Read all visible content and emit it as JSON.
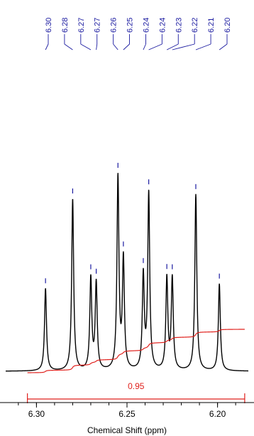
{
  "chart_data": {
    "type": "line",
    "title": "",
    "xlabel": "Chemical Shift (ppm)",
    "ylabel": "",
    "x_axis_reversed": true,
    "xlim": [
      6.317,
      6.183
    ],
    "ylim": [
      0,
      1
    ],
    "x_ticks": [
      {
        "value": 6.3,
        "label": "6.30"
      },
      {
        "value": 6.25,
        "label": "6.25"
      },
      {
        "value": 6.2,
        "label": "6.20"
      }
    ],
    "peaks": [
      {
        "shift": 6.295,
        "height": 0.36
      },
      {
        "shift": 6.28,
        "height": 0.75
      },
      {
        "shift": 6.27,
        "height": 0.4
      },
      {
        "shift": 6.267,
        "height": 0.38
      },
      {
        "shift": 6.255,
        "height": 0.84
      },
      {
        "shift": 6.252,
        "height": 0.48
      },
      {
        "shift": 6.241,
        "height": 0.41
      },
      {
        "shift": 6.238,
        "height": 0.77
      },
      {
        "shift": 6.228,
        "height": 0.4
      },
      {
        "shift": 6.225,
        "height": 0.4
      },
      {
        "shift": 6.212,
        "height": 0.77
      },
      {
        "shift": 6.199,
        "height": 0.38
      }
    ],
    "peak_labels": [
      {
        "label": "6.30",
        "shift": 6.295
      },
      {
        "label": "6.28",
        "shift": 6.28
      },
      {
        "label": "6.27",
        "shift": 6.27
      },
      {
        "label": "6.27",
        "shift": 6.267
      },
      {
        "label": "6.26",
        "shift": 6.255
      },
      {
        "label": "6.25",
        "shift": 6.252
      },
      {
        "label": "6.24",
        "shift": 6.241
      },
      {
        "label": "6.24",
        "shift": 6.238
      },
      {
        "label": "6.23",
        "shift": 6.228
      },
      {
        "label": "6.22",
        "shift": 6.225
      },
      {
        "label": "6.21",
        "shift": 6.212
      },
      {
        "label": "6.20",
        "shift": 6.199
      }
    ],
    "integrals": [
      {
        "from": 6.305,
        "to": 6.185,
        "value": "0.95"
      }
    ],
    "grid": false,
    "legend": "none",
    "colors": {
      "spectrum": "#000000",
      "peak_label": "#1a1aa0",
      "integral": "#e0201c"
    }
  }
}
